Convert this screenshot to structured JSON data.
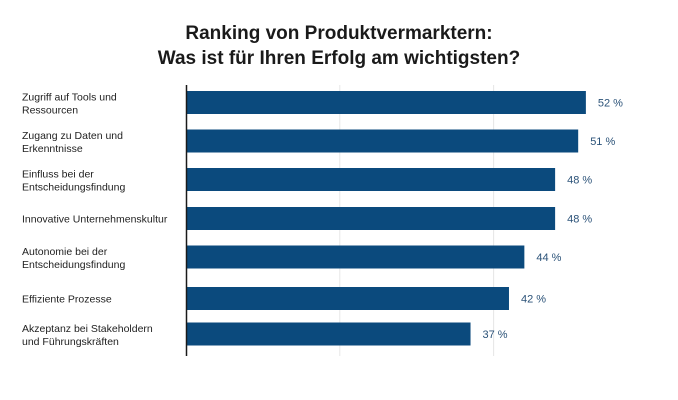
{
  "chart_data": {
    "type": "bar",
    "orientation": "horizontal",
    "title": "Ranking von Produktvermarktern:\nWas ist für Ihren Erfolg am wichtigsten?",
    "title_lines": [
      "Ranking von Produktvermarktern:",
      "Was ist für Ihren Erfolg am wichtigsten?"
    ],
    "categories": [
      [
        "Zugriff auf Tools und",
        "Ressourcen"
      ],
      [
        "Zugang zu Daten und",
        "Erkenntnisse"
      ],
      [
        "Einfluss bei der",
        "Entscheidungsfindung"
      ],
      [
        "Innovative Unternehmenskultur"
      ],
      [
        "Autonomie bei der",
        "Entscheidungsfindung"
      ],
      [
        "Effiziente Prozesse"
      ],
      [
        "Akzeptanz bei Stakeholdern",
        "und Führungskräften"
      ]
    ],
    "values": [
      52,
      51,
      48,
      48,
      44,
      42,
      37
    ],
    "data_labels": [
      "52 %",
      "51 %",
      "48 %",
      "48 %",
      "44 %",
      "42 %",
      "37 %"
    ],
    "unit": "%",
    "xlim": [
      0,
      60
    ],
    "gridlines_at": [
      20,
      40
    ],
    "grid": true,
    "legend": "none",
    "colors": {
      "bar": "#0b4a7d",
      "label": "#2b5278",
      "grid": "#e6e6e6",
      "axis": "#1a1a1a"
    }
  }
}
